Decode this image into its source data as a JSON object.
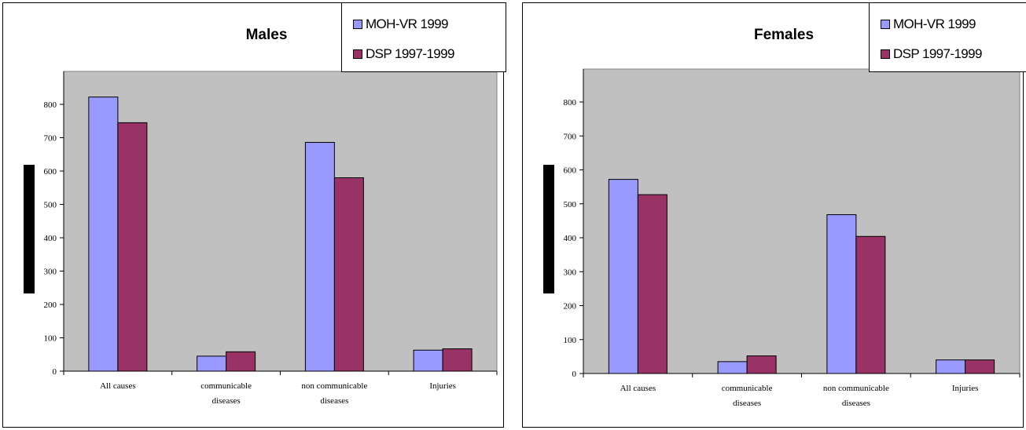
{
  "chart_data": [
    {
      "type": "bar",
      "title": "Males",
      "categories": [
        [
          "All causes"
        ],
        [
          "communicable",
          "diseases"
        ],
        [
          "non communicable",
          "diseases"
        ],
        [
          "Injuries"
        ]
      ],
      "series": [
        {
          "name": "MOH-VR 1999",
          "color": "#9999ff",
          "values": [
            822,
            45,
            686,
            63
          ]
        },
        {
          "name": "DSP 1997-1999",
          "color": "#993366",
          "values": [
            745,
            58,
            580,
            67
          ]
        }
      ],
      "ylim": [
        0,
        800
      ],
      "yticks": [
        0,
        100,
        200,
        300,
        400,
        500,
        600,
        700,
        800
      ],
      "plot_background": "#c0c0c0",
      "grid": false,
      "legend": "top-right"
    },
    {
      "type": "bar",
      "title": "Females",
      "categories": [
        [
          "All causes"
        ],
        [
          "communicable",
          "diseases"
        ],
        [
          "non communicable",
          "diseases"
        ],
        [
          "Injuries"
        ]
      ],
      "series": [
        {
          "name": "MOH-VR 1999",
          "color": "#9999ff",
          "values": [
            572,
            35,
            468,
            40
          ]
        },
        {
          "name": "DSP 1997-1999",
          "color": "#993366",
          "values": [
            527,
            52,
            404,
            40
          ]
        }
      ],
      "ylim": [
        0,
        800
      ],
      "yticks": [
        0,
        100,
        200,
        300,
        400,
        500,
        600,
        700,
        800
      ],
      "plot_background": "#c0c0c0",
      "grid": false,
      "legend": "top-right"
    }
  ]
}
